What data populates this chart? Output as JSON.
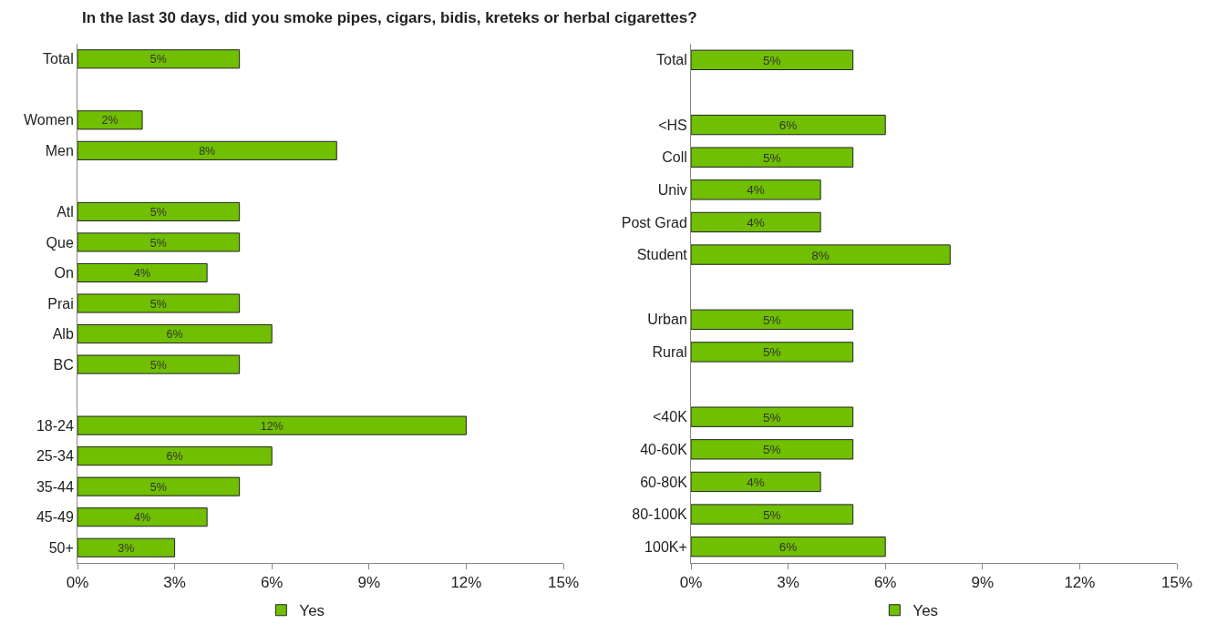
{
  "chart_data": [
    {
      "type": "bar",
      "orientation": "horizontal",
      "title": "In the last 30 days, did you smoke pipes, cigars, bidis, kreteks or herbal cigarettes?",
      "categories": [
        "Total",
        null,
        "Women",
        "Men",
        null,
        "Atl",
        "Que",
        "On",
        "Prai",
        "Alb",
        "BC",
        null,
        "18-24",
        "25-34",
        "35-44",
        "45-49",
        "50+"
      ],
      "series": [
        {
          "name": "Yes",
          "color": "#70bf00",
          "values": [
            5,
            null,
            2,
            8,
            null,
            5,
            5,
            4,
            5,
            6,
            5,
            null,
            12,
            6,
            5,
            4,
            3
          ],
          "value_labels": [
            "5%",
            null,
            "2%",
            "8%",
            null,
            "5%",
            "5%",
            "4%",
            "5%",
            "6%",
            "5%",
            null,
            "12%",
            "6%",
            "5%",
            "4%",
            "3%"
          ]
        }
      ],
      "xlim": [
        0,
        15
      ],
      "xticks": [
        {
          "value": 0,
          "label": "0%"
        },
        {
          "value": 3,
          "label": "3%"
        },
        {
          "value": 6,
          "label": "6%"
        },
        {
          "value": 9,
          "label": "9%"
        },
        {
          "value": 12,
          "label": "12%"
        },
        {
          "value": 15,
          "label": "15%"
        }
      ],
      "grid": false,
      "legend": "bottom"
    },
    {
      "type": "bar",
      "orientation": "horizontal",
      "categories": [
        "Total",
        null,
        "<HS",
        "Coll",
        "Univ",
        "Post Grad",
        "Student",
        null,
        "Urban",
        "Rural",
        null,
        "<40K",
        "40-60K",
        "60-80K",
        "80-100K",
        "100K+"
      ],
      "series": [
        {
          "name": "Yes",
          "color": "#70bf00",
          "values": [
            5,
            null,
            6,
            5,
            4,
            4,
            8,
            null,
            5,
            5,
            null,
            5,
            5,
            4,
            5,
            6
          ],
          "value_labels": [
            "5%",
            null,
            "6%",
            "5%",
            "4%",
            "4%",
            "8%",
            null,
            "5%",
            "5%",
            null,
            "5%",
            "5%",
            "4%",
            "5%",
            "6%"
          ]
        }
      ],
      "xlim": [
        0,
        15
      ],
      "xticks": [
        {
          "value": 0,
          "label": "0%"
        },
        {
          "value": 3,
          "label": "3%"
        },
        {
          "value": 6,
          "label": "6%"
        },
        {
          "value": 9,
          "label": "9%"
        },
        {
          "value": 12,
          "label": "12%"
        },
        {
          "value": 15,
          "label": "15%"
        }
      ],
      "grid": false,
      "legend": "bottom"
    }
  ]
}
